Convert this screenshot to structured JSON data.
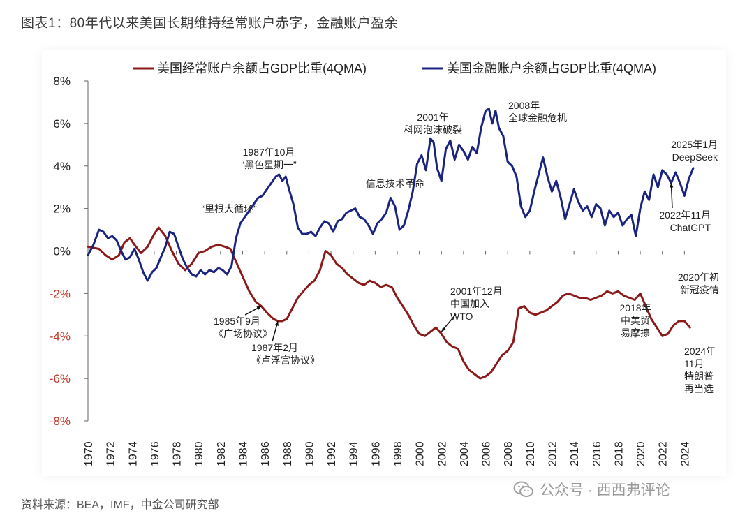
{
  "title": "图表1：80年代以来美国长期维持经常账户赤字，金融账户盈余",
  "source": "资料来源：BEA，IMF，中金公司研究部",
  "watermark": "公众号 · 西西弗评论",
  "chart_data": {
    "type": "line",
    "xlim": [
      1970,
      2026
    ],
    "ylim": [
      -8,
      8
    ],
    "yticks": [
      -8,
      -6,
      -4,
      -2,
      0,
      2,
      4,
      6,
      8
    ],
    "ytick_labels": [
      "-8%",
      "-6%",
      "-4%",
      "-2%",
      "0%",
      "2%",
      "4%",
      "6%",
      "8%"
    ],
    "xticks": [
      1970,
      1972,
      1974,
      1976,
      1978,
      1980,
      1982,
      1984,
      1986,
      1988,
      1990,
      1992,
      1994,
      1996,
      1998,
      2000,
      2002,
      2004,
      2006,
      2008,
      2010,
      2012,
      2014,
      2016,
      2018,
      2020,
      2022,
      2024
    ],
    "xtick_labels": [
      "1970",
      "1972",
      "1974",
      "1976",
      "1978",
      "1980",
      "1982",
      "1984",
      "1986",
      "1988",
      "1990",
      "1992",
      "1994",
      "1996",
      "1998",
      "2000",
      "2002",
      "2004",
      "2006",
      "2008",
      "2010",
      "2012",
      "2014",
      "2016",
      "2018",
      "2020",
      "2022",
      "2024"
    ],
    "legend_position": "top",
    "series": [
      {
        "name": "美国经常账户余额占GDP比重(4QMA)",
        "color": "#8b1a1a",
        "label_color": "#c0392b",
        "x": [
          1970.0,
          1971.0,
          1971.6,
          1972.2,
          1972.8,
          1973.3,
          1973.8,
          1974.2,
          1974.8,
          1975.4,
          1976.0,
          1976.4,
          1977.0,
          1977.6,
          1978.2,
          1978.8,
          1979.4,
          1980.0,
          1980.6,
          1981.2,
          1981.8,
          1982.4,
          1982.9,
          1983.4,
          1984.0,
          1984.6,
          1985.2,
          1985.7,
          1986.2,
          1986.8,
          1987.2,
          1987.6,
          1988.0,
          1988.5,
          1989.0,
          1989.5,
          1990.0,
          1990.5,
          1991.0,
          1991.5,
          1992.0,
          1992.5,
          1993.0,
          1993.5,
          1994.0,
          1994.5,
          1995.0,
          1995.5,
          1996.0,
          1996.5,
          1997.0,
          1997.5,
          1998.0,
          1998.5,
          1999.0,
          1999.5,
          2000.0,
          2000.5,
          2001.0,
          2001.5,
          2002.0,
          2002.5,
          2003.0,
          2003.5,
          2004.0,
          2004.5,
          2005.0,
          2005.5,
          2006.0,
          2006.5,
          2007.0,
          2007.5,
          2008.0,
          2008.5,
          2009.0,
          2009.5,
          2010.0,
          2010.5,
          2011.0,
          2011.5,
          2012.0,
          2012.5,
          2013.0,
          2013.5,
          2014.0,
          2014.5,
          2015.0,
          2015.5,
          2016.0,
          2016.5,
          2017.0,
          2017.5,
          2018.0,
          2018.5,
          2019.0,
          2019.5,
          2020.0,
          2020.5,
          2021.0,
          2021.5,
          2022.0,
          2022.5,
          2023.0,
          2023.5,
          2024.0,
          2024.5
        ],
        "values": [
          0.2,
          0.1,
          -0.2,
          -0.4,
          -0.2,
          0.4,
          0.6,
          0.3,
          -0.1,
          0.2,
          0.8,
          1.1,
          0.7,
          0.0,
          -0.6,
          -0.9,
          -0.6,
          -0.1,
          0.0,
          0.2,
          0.3,
          0.2,
          0.1,
          -0.5,
          -1.2,
          -1.9,
          -2.4,
          -2.6,
          -2.9,
          -3.2,
          -3.3,
          -3.3,
          -3.2,
          -2.7,
          -2.2,
          -1.9,
          -1.6,
          -1.4,
          -0.9,
          0.0,
          -0.2,
          -0.6,
          -0.8,
          -1.1,
          -1.3,
          -1.5,
          -1.6,
          -1.4,
          -1.5,
          -1.7,
          -1.6,
          -1.7,
          -2.2,
          -2.6,
          -3.0,
          -3.5,
          -3.9,
          -4.0,
          -3.8,
          -3.6,
          -3.9,
          -4.3,
          -4.5,
          -4.6,
          -5.2,
          -5.6,
          -5.8,
          -6.0,
          -5.9,
          -5.7,
          -5.3,
          -4.9,
          -4.7,
          -4.3,
          -2.7,
          -2.6,
          -2.9,
          -3.0,
          -2.9,
          -2.8,
          -2.6,
          -2.4,
          -2.1,
          -2.0,
          -2.1,
          -2.2,
          -2.2,
          -2.3,
          -2.2,
          -2.1,
          -1.9,
          -2.0,
          -1.9,
          -2.1,
          -2.2,
          -2.3,
          -2.0,
          -2.6,
          -3.2,
          -3.6,
          -4.0,
          -3.9,
          -3.5,
          -3.3,
          -3.3,
          -3.6
        ]
      },
      {
        "name": "美国金融账户余额占GDP比重(4QMA)",
        "color": "#1a237e",
        "label_color": "#1a237e",
        "x": [
          1970.0,
          1970.5,
          1971.0,
          1971.4,
          1971.8,
          1972.2,
          1972.6,
          1973.0,
          1973.4,
          1973.8,
          1974.2,
          1974.6,
          1975.0,
          1975.4,
          1975.8,
          1976.2,
          1976.6,
          1977.0,
          1977.4,
          1977.8,
          1978.2,
          1978.6,
          1979.0,
          1979.4,
          1979.8,
          1980.2,
          1980.6,
          1981.0,
          1981.4,
          1981.8,
          1982.2,
          1982.6,
          1983.0,
          1983.4,
          1983.8,
          1984.2,
          1984.6,
          1985.0,
          1985.4,
          1985.8,
          1986.2,
          1986.6,
          1987.0,
          1987.3,
          1987.6,
          1987.9,
          1988.2,
          1988.6,
          1989.0,
          1989.4,
          1989.8,
          1990.2,
          1990.6,
          1991.0,
          1991.4,
          1991.8,
          1992.2,
          1992.6,
          1993.0,
          1993.4,
          1993.8,
          1994.2,
          1994.6,
          1995.0,
          1995.4,
          1995.8,
          1996.2,
          1996.6,
          1997.0,
          1997.4,
          1997.8,
          1998.2,
          1998.6,
          1999.0,
          1999.4,
          1999.8,
          2000.2,
          2000.6,
          2001.0,
          2001.3,
          2001.6,
          2002.0,
          2002.4,
          2002.8,
          2003.2,
          2003.6,
          2004.0,
          2004.4,
          2004.8,
          2005.2,
          2005.6,
          2006.0,
          2006.3,
          2006.6,
          2006.9,
          2007.2,
          2007.6,
          2008.0,
          2008.4,
          2008.8,
          2009.2,
          2009.6,
          2010.0,
          2010.4,
          2010.8,
          2011.2,
          2011.6,
          2012.0,
          2012.4,
          2012.8,
          2013.2,
          2013.6,
          2014.0,
          2014.4,
          2014.8,
          2015.2,
          2015.6,
          2016.0,
          2016.4,
          2016.8,
          2017.2,
          2017.6,
          2018.0,
          2018.4,
          2018.8,
          2019.2,
          2019.6,
          2020.0,
          2020.4,
          2020.8,
          2021.2,
          2021.6,
          2022.0,
          2022.4,
          2022.8,
          2023.2,
          2023.6,
          2024.0,
          2024.4,
          2024.8
        ],
        "values": [
          -0.2,
          0.3,
          1.0,
          0.9,
          0.6,
          0.7,
          0.5,
          0.0,
          -0.4,
          -0.3,
          0.1,
          -0.4,
          -1.0,
          -1.4,
          -1.0,
          -0.8,
          -0.3,
          0.2,
          0.9,
          0.8,
          0.2,
          -0.4,
          -0.8,
          -1.1,
          -1.2,
          -0.9,
          -1.1,
          -0.9,
          -1.0,
          -0.8,
          -0.9,
          -1.1,
          -0.7,
          0.6,
          1.3,
          1.6,
          1.9,
          2.2,
          2.5,
          2.6,
          2.9,
          3.2,
          3.5,
          3.6,
          3.3,
          3.5,
          2.9,
          2.2,
          1.1,
          0.8,
          0.8,
          0.9,
          0.7,
          1.1,
          1.4,
          1.3,
          0.9,
          1.4,
          1.5,
          1.8,
          1.9,
          2.0,
          1.6,
          1.5,
          1.2,
          0.8,
          1.3,
          1.5,
          1.8,
          2.5,
          2.1,
          1.0,
          1.2,
          1.9,
          2.8,
          4.1,
          4.5,
          3.8,
          5.3,
          5.1,
          3.9,
          3.3,
          4.8,
          5.2,
          4.3,
          5.0,
          4.7,
          4.3,
          4.9,
          4.6,
          5.8,
          6.6,
          6.7,
          6.0,
          6.6,
          5.8,
          5.4,
          4.2,
          4.0,
          3.5,
          2.1,
          1.6,
          1.9,
          2.8,
          3.6,
          4.4,
          3.5,
          2.8,
          3.3,
          2.5,
          1.5,
          2.2,
          2.9,
          2.3,
          1.9,
          2.1,
          1.6,
          2.2,
          2.0,
          1.2,
          1.9,
          1.6,
          1.8,
          1.2,
          1.5,
          1.7,
          0.7,
          2.0,
          2.8,
          2.4,
          3.6,
          3.0,
          3.8,
          3.6,
          3.2,
          3.7,
          3.2,
          2.6,
          3.4,
          3.9
        ]
      }
    ],
    "annotations": [
      {
        "id": "plaza",
        "lines": [
          "1985年9月",
          "《广场协议》"
        ],
        "x": 1985.7,
        "y": -2.6,
        "color": "#8b1a1a"
      },
      {
        "id": "louvre",
        "lines": [
          "1987年2月",
          "《卢浮宫协议》"
        ],
        "x": 1987.2,
        "y": -3.3,
        "color": "#8b1a1a"
      },
      {
        "id": "wto",
        "lines": [
          "2001年12月",
          "中国加入",
          "WTO"
        ],
        "x": 2002.0,
        "y": -3.8,
        "color": "#8b1a1a"
      },
      {
        "id": "reagan",
        "lines": [
          "“里根大循环”"
        ],
        "x": 1984.0,
        "y": 1.8,
        "color": "#1a237e"
      },
      {
        "id": "black-monday",
        "lines": [
          "1987年10月",
          "“黑色星期一”"
        ],
        "x": 1987.8,
        "y": 3.5,
        "color": "#1a237e"
      },
      {
        "id": "it-revolution",
        "lines": [
          "信息技术革命"
        ],
        "x": 1997.5,
        "y": 2.6,
        "color": "#1a237e"
      },
      {
        "id": "dotcom",
        "lines": [
          "2001年",
          "科网泡沫破裂"
        ],
        "x": 2001.3,
        "y": 5.3,
        "color": "#1a237e"
      },
      {
        "id": "gfc",
        "lines": [
          "2008年",
          "全球金融危机"
        ],
        "x": 2006.9,
        "y": 6.6,
        "color": "#1a237e"
      },
      {
        "id": "deepseek",
        "lines": [
          "2025年1月",
          "DeepSeek"
        ],
        "x": 2024.8,
        "y": 3.9,
        "color": "#1a237e"
      },
      {
        "id": "chatgpt",
        "lines": [
          "2022年11月",
          "ChatGPT"
        ],
        "x": 2022.8,
        "y": 3.2,
        "color": "#1a237e"
      },
      {
        "id": "covid",
        "lines": [
          "2020年初",
          "新冠疫情"
        ],
        "x": 2020.0,
        "y": -2.0,
        "color": "#8b1a1a"
      },
      {
        "id": "trade-war",
        "lines": [
          "2018年",
          "中美贸",
          "易摩擦"
        ],
        "x": 2018.5,
        "y": -2.1,
        "color": "#8b1a1a"
      },
      {
        "id": "trump",
        "lines": [
          "2024年",
          "11月",
          "特朗普",
          "再当选"
        ],
        "x": 2024.5,
        "y": -3.6,
        "color": "#8b1a1a"
      }
    ]
  }
}
